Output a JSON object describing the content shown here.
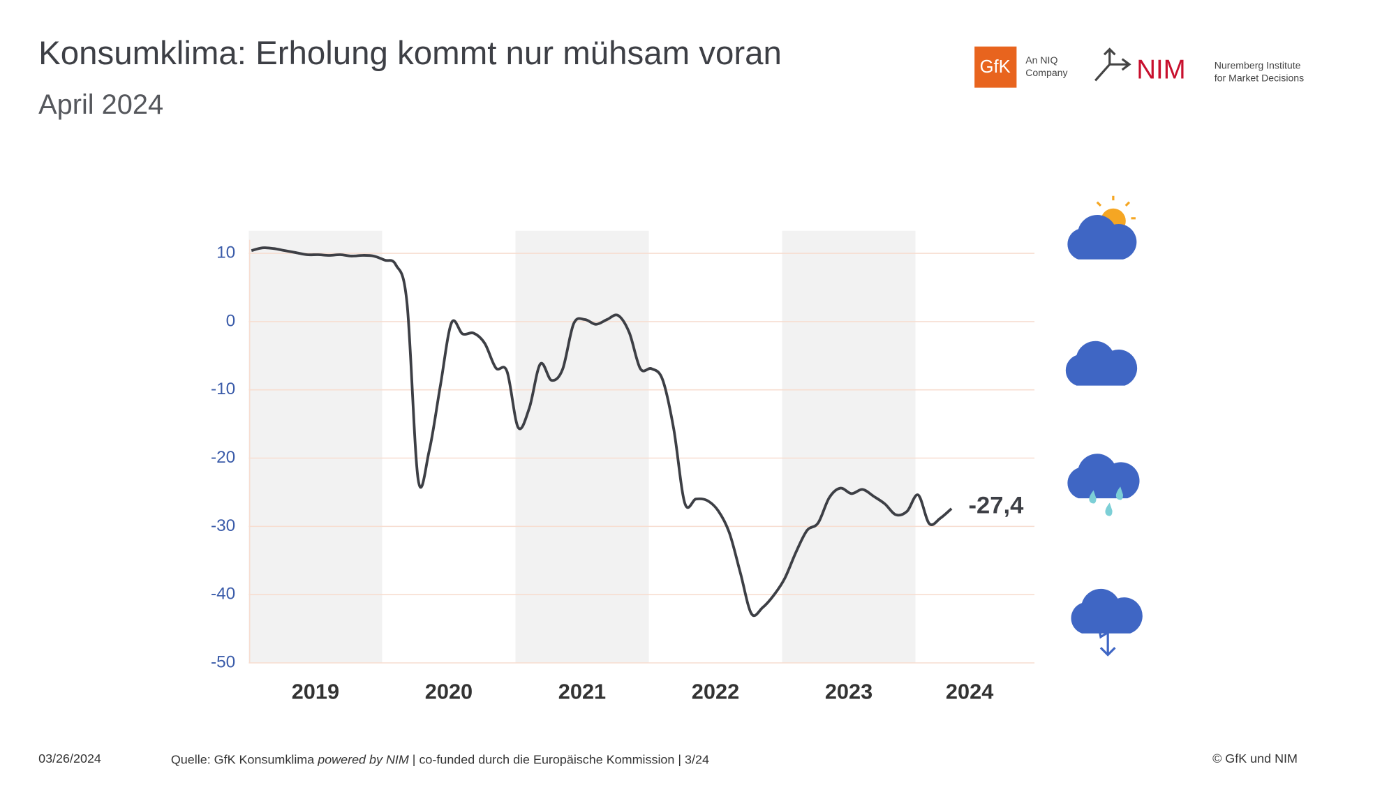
{
  "chart_data": {
    "type": "line",
    "title": "Konsumklima: Erholung kommt nur mühsam voran",
    "subtitle": "April 2024",
    "years": [
      "2019",
      "2020",
      "2021",
      "2022",
      "2023",
      "2024"
    ],
    "values": [
      10.4,
      10.8,
      10.7,
      10.4,
      10.1,
      9.8,
      9.8,
      9.7,
      9.8,
      9.6,
      9.7,
      9.6,
      9.0,
      8.3,
      2.7,
      -23.1,
      -18.9,
      -9.4,
      -0.2,
      -1.8,
      -1.7,
      -3.2,
      -6.8,
      -7.3,
      -15.5,
      -12.7,
      -6.2,
      -8.6,
      -7.0,
      -0.3,
      0.3,
      -0.4,
      0.3,
      0.9,
      -1.6,
      -6.9,
      -6.9,
      -8.5,
      -15.7,
      -26.6,
      -26.0,
      -26.2,
      -27.7,
      -30.9,
      -36.8,
      -42.8,
      -41.9,
      -40.1,
      -37.6,
      -33.8,
      -30.6,
      -29.5,
      -25.8,
      -24.4,
      -25.2,
      -24.6,
      -25.6,
      -26.7,
      -28.3,
      -27.8,
      -25.4,
      -29.6,
      -28.8,
      -27.4
    ],
    "value_labels": [
      null,
      null,
      null,
      null,
      null,
      null,
      null,
      null,
      null,
      null,
      null,
      null,
      null,
      null,
      null,
      null,
      null,
      null,
      null,
      null,
      null,
      null,
      null,
      null,
      null,
      null,
      null,
      null,
      null,
      null,
      null,
      null,
      null,
      null,
      null,
      null,
      null,
      null,
      null,
      null,
      null,
      null,
      null,
      null,
      null,
      null,
      null,
      null,
      null,
      null,
      null,
      null,
      null,
      null,
      null,
      null,
      null,
      null,
      null,
      null,
      null,
      null,
      null,
      "-27,4"
    ],
    "color": "#3d3f45",
    "ylim": [
      -50,
      13.3
    ],
    "yticks": [
      10,
      0,
      -10,
      -20,
      -30,
      -40,
      -50
    ],
    "grid": true,
    "date": "03/26/2024",
    "source": [
      "Quelle: GfK Konsumklima ",
      "powered by NIM",
      " | co-funded durch die Europäische Kommission | 3/24"
    ],
    "copyright": "© GfK und NIM"
  },
  "logos": {
    "gfk": "GfK",
    "gfk_sub": [
      "An NIQ",
      "Company"
    ],
    "nim": "NIM",
    "nim_sub": [
      "Nuremberg Institute",
      "for Market Decisions"
    ]
  }
}
